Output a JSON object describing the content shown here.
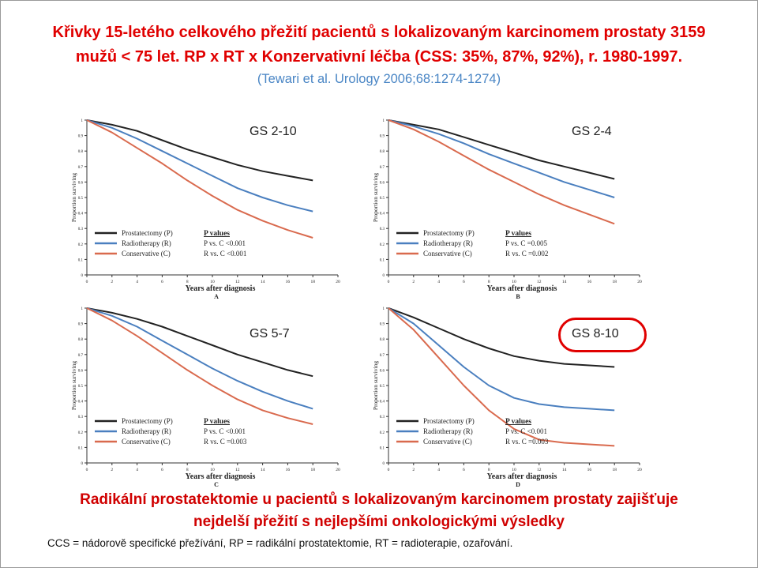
{
  "title_line1": "Křivky 15-letého celkového přežití pacientů s lokalizovaným karcinomem prostaty 3159",
  "title_line2": "mužů < 75 let. RP x RT x Konzervativní léčba  (CSS:  35%, 87%, 92%), r. 1980-1997.",
  "citation_authors": "(Tewari et al.",
  "citation_source": "Urology 2006;68:1274-1274)",
  "conclusion_line1": "Radikální prostatektomie u pacientů s lokalizovaným karcinomem prostaty zajišťuje",
  "conclusion_line2": "nejdelší přežití s nejlepšími onkologickými výsledky",
  "footnote": "CCS = nádorově specifické přežívání, RP = radikální prostatektomie, RT = radioterapie, ozařování.",
  "colors": {
    "prostatectomy": "#222222",
    "radiotherapy": "#4a7fbf",
    "conservative": "#d96a4e",
    "highlight": "#e00000"
  },
  "chart_data": [
    {
      "type": "line",
      "panel": "A",
      "group_label": "GS 2-10",
      "xlabel": "Years after diagnosis",
      "ylabel": "Proportion surviving",
      "xlim": [
        0,
        20
      ],
      "ylim": [
        0,
        1
      ],
      "xticks": [
        0,
        2,
        4,
        6,
        8,
        10,
        12,
        14,
        16,
        18,
        20
      ],
      "yticks": [
        "0",
        "0.1",
        "0.2",
        "0.3",
        "0.4",
        "0.5",
        "0.6",
        "0.7",
        "0.8",
        "0.9",
        "1"
      ],
      "legend": [
        "Prostatectomy (P)",
        "Radiotherapy (R)",
        "Conservative (C)"
      ],
      "pvalues_title": "P values",
      "pvalues": [
        "P  vs. C <0.001",
        "R  vs. C <0.001"
      ],
      "series": [
        {
          "name": "Prostatectomy (P)",
          "x": [
            0,
            2,
            4,
            6,
            8,
            10,
            12,
            14,
            16,
            18
          ],
          "y": [
            1.0,
            0.97,
            0.93,
            0.87,
            0.81,
            0.76,
            0.71,
            0.67,
            0.64,
            0.61
          ]
        },
        {
          "name": "Radiotherapy (R)",
          "x": [
            0,
            2,
            4,
            6,
            8,
            10,
            12,
            14,
            16,
            18
          ],
          "y": [
            1.0,
            0.95,
            0.88,
            0.8,
            0.72,
            0.64,
            0.56,
            0.5,
            0.45,
            0.41
          ]
        },
        {
          "name": "Conservative (C)",
          "x": [
            0,
            2,
            4,
            6,
            8,
            10,
            12,
            14,
            16,
            18
          ],
          "y": [
            1.0,
            0.92,
            0.82,
            0.72,
            0.61,
            0.51,
            0.42,
            0.35,
            0.29,
            0.24
          ]
        }
      ]
    },
    {
      "type": "line",
      "panel": "B",
      "group_label": "GS 2-4",
      "xlabel": "Years after diagnosis",
      "ylabel": "Proportion surviving",
      "xlim": [
        0,
        20
      ],
      "ylim": [
        0,
        1
      ],
      "xticks": [
        0,
        2,
        4,
        6,
        8,
        10,
        12,
        14,
        16,
        18,
        20
      ],
      "yticks": [
        "0",
        "0.1",
        "0.2",
        "0.3",
        "0.4",
        "0.5",
        "0.6",
        "0.7",
        "0.8",
        "0.9",
        "1"
      ],
      "legend": [
        "Prostatectomy (P)",
        "Radiotherapy (R)",
        "Conservative (C)"
      ],
      "pvalues_title": "P values",
      "pvalues": [
        "P  vs. C =0.005",
        "R  vs. C =0.002"
      ],
      "series": [
        {
          "name": "Prostatectomy (P)",
          "x": [
            0,
            2,
            4,
            6,
            8,
            10,
            12,
            14,
            16,
            18
          ],
          "y": [
            1.0,
            0.97,
            0.94,
            0.89,
            0.84,
            0.79,
            0.74,
            0.7,
            0.66,
            0.62
          ]
        },
        {
          "name": "Radiotherapy (R)",
          "x": [
            0,
            2,
            4,
            6,
            8,
            10,
            12,
            14,
            16,
            18
          ],
          "y": [
            1.0,
            0.96,
            0.91,
            0.85,
            0.78,
            0.72,
            0.66,
            0.6,
            0.55,
            0.5
          ]
        },
        {
          "name": "Conservative (C)",
          "x": [
            0,
            2,
            4,
            6,
            8,
            10,
            12,
            14,
            16,
            18
          ],
          "y": [
            1.0,
            0.94,
            0.86,
            0.77,
            0.68,
            0.6,
            0.52,
            0.45,
            0.39,
            0.33
          ]
        }
      ]
    },
    {
      "type": "line",
      "panel": "C",
      "group_label": "GS 5-7",
      "xlabel": "Years after diagnosis",
      "ylabel": "Proportion surviving",
      "xlim": [
        0,
        20
      ],
      "ylim": [
        0,
        1
      ],
      "xticks": [
        0,
        2,
        4,
        6,
        8,
        10,
        12,
        14,
        16,
        18,
        20
      ],
      "yticks": [
        "0",
        "0.1",
        "0.2",
        "0.3",
        "0.4",
        "0.5",
        "0.6",
        "0.7",
        "0.8",
        "0.9",
        "1"
      ],
      "legend": [
        "Prostatectomy (P)",
        "Radiotherapy (R)",
        "Conservative (C)"
      ],
      "pvalues_title": "P values",
      "pvalues": [
        "P  vs. C <0.001",
        "R  vs. C =0.003"
      ],
      "series": [
        {
          "name": "Prostatectomy (P)",
          "x": [
            0,
            2,
            4,
            6,
            8,
            10,
            12,
            14,
            16,
            18
          ],
          "y": [
            1.0,
            0.97,
            0.93,
            0.88,
            0.82,
            0.76,
            0.7,
            0.65,
            0.6,
            0.56
          ]
        },
        {
          "name": "Radiotherapy (R)",
          "x": [
            0,
            2,
            4,
            6,
            8,
            10,
            12,
            14,
            16,
            18
          ],
          "y": [
            1.0,
            0.95,
            0.88,
            0.79,
            0.7,
            0.61,
            0.53,
            0.46,
            0.4,
            0.35
          ]
        },
        {
          "name": "Conservative (C)",
          "x": [
            0,
            2,
            4,
            6,
            8,
            10,
            12,
            14,
            16,
            18
          ],
          "y": [
            1.0,
            0.92,
            0.82,
            0.71,
            0.6,
            0.5,
            0.41,
            0.34,
            0.29,
            0.25
          ]
        }
      ]
    },
    {
      "type": "line",
      "panel": "D",
      "group_label": "GS 8-10",
      "xlabel": "Years after diagnosis",
      "ylabel": "Proportion surviving",
      "xlim": [
        0,
        20
      ],
      "ylim": [
        0,
        1
      ],
      "xticks": [
        0,
        2,
        4,
        6,
        8,
        10,
        12,
        14,
        16,
        18,
        20
      ],
      "yticks": [
        "0",
        "0.1",
        "0.2",
        "0.3",
        "0.4",
        "0.5",
        "0.6",
        "0.7",
        "0.8",
        "0.9",
        "1"
      ],
      "legend": [
        "Prostatectomy (P)",
        "Radiotherapy (R)",
        "Conservative (C)"
      ],
      "pvalues_title": "P values",
      "pvalues": [
        "P  vs. C <0.001",
        "R  vs. C =0.003"
      ],
      "series": [
        {
          "name": "Prostatectomy (P)",
          "x": [
            0,
            2,
            4,
            6,
            8,
            10,
            12,
            14,
            16,
            18
          ],
          "y": [
            1.0,
            0.94,
            0.87,
            0.8,
            0.74,
            0.69,
            0.66,
            0.64,
            0.63,
            0.62
          ]
        },
        {
          "name": "Radiotherapy (R)",
          "x": [
            0,
            2,
            4,
            6,
            8,
            10,
            12,
            14,
            16,
            18
          ],
          "y": [
            1.0,
            0.9,
            0.76,
            0.62,
            0.5,
            0.42,
            0.38,
            0.36,
            0.35,
            0.34
          ]
        },
        {
          "name": "Conservative (C)",
          "x": [
            0,
            2,
            4,
            6,
            8,
            10,
            12,
            14,
            16,
            18
          ],
          "y": [
            1.0,
            0.86,
            0.68,
            0.5,
            0.34,
            0.22,
            0.15,
            0.13,
            0.12,
            0.11
          ]
        }
      ]
    }
  ]
}
